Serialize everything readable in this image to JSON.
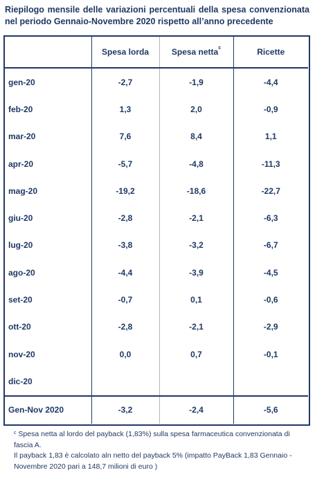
{
  "title": {
    "line1": "Riepilogo mensile delle variazioni percentuali della spesa convenzionata",
    "line2": "nel periodo Gennaio-Novembre 2020 rispetto all’anno precedente"
  },
  "table": {
    "headers": [
      "",
      "Spesa lorda",
      "Spesa netta",
      "Ricette"
    ],
    "header_superscript": "c",
    "rows": [
      {
        "month": "gen-20",
        "lorda": "-2,7",
        "netta": "-1,9",
        "ricette": "-4,4"
      },
      {
        "month": "feb-20",
        "lorda": "1,3",
        "netta": "2,0",
        "ricette": "-0,9"
      },
      {
        "month": "mar-20",
        "lorda": "7,6",
        "netta": "8,4",
        "ricette": "1,1"
      },
      {
        "month": "apr-20",
        "lorda": "-5,7",
        "netta": "-4,8",
        "ricette": "-11,3"
      },
      {
        "month": "mag-20",
        "lorda": "-19,2",
        "netta": "-18,6",
        "ricette": "-22,7"
      },
      {
        "month": "giu-20",
        "lorda": "-2,8",
        "netta": "-2,1",
        "ricette": "-6,3"
      },
      {
        "month": "lug-20",
        "lorda": "-3,8",
        "netta": "-3,2",
        "ricette": "-6,7"
      },
      {
        "month": "ago-20",
        "lorda": "-4,4",
        "netta": "-3,9",
        "ricette": "-4,5"
      },
      {
        "month": "set-20",
        "lorda": "-0,7",
        "netta": "0,1",
        "ricette": "-0,6"
      },
      {
        "month": "ott-20",
        "lorda": "-2,8",
        "netta": "-2,1",
        "ricette": "-2,9"
      },
      {
        "month": "nov-20",
        "lorda": "0,0",
        "netta": "0,7",
        "ricette": "-0,1"
      },
      {
        "month": "dic-20",
        "lorda": "",
        "netta": "",
        "ricette": ""
      }
    ],
    "total": {
      "label": "Gen-Nov 2020",
      "lorda": "-3,2",
      "netta": "-2,4",
      "ricette": "-5,6"
    }
  },
  "footnote": {
    "marker": "c",
    "line1": " Spesa netta al lordo del payback (1,83%) sulla spesa farmaceutica convenzionata di fascia A.",
    "line2": "Il payback 1,83 è calcolato aln netto del payback 5%  (impatto PayBack 1,83 Gennaio - Novembre 2020 pari a 148,7 milioni di euro )"
  }
}
